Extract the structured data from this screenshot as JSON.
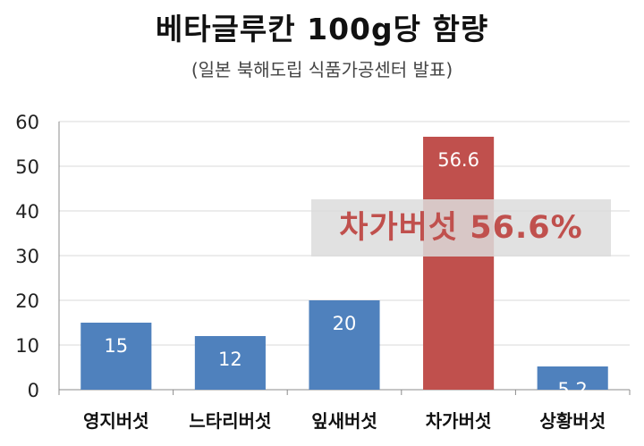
{
  "chart_data": {
    "type": "bar",
    "title": "베타글루칸 100g당 함량",
    "subtitle": "(일본 북해도립 식품가공센터 발표)",
    "categories": [
      "영지버섯",
      "느타리버섯",
      "잎새버섯",
      "차가버섯",
      "상황버섯"
    ],
    "values": [
      15,
      12,
      20,
      56.6,
      5.2
    ],
    "data_labels": [
      "15",
      "12",
      "20",
      "56.6",
      "5.2"
    ],
    "highlight_index": 3,
    "ylim": [
      0,
      60
    ],
    "yticks": [
      0,
      10,
      20,
      30,
      40,
      50,
      60
    ],
    "grid": true,
    "colors": {
      "default": "#4f81bd",
      "highlight": "#c0504d",
      "grid": "#d9d9d9"
    },
    "annotation": "차가버섯 56.6%"
  }
}
